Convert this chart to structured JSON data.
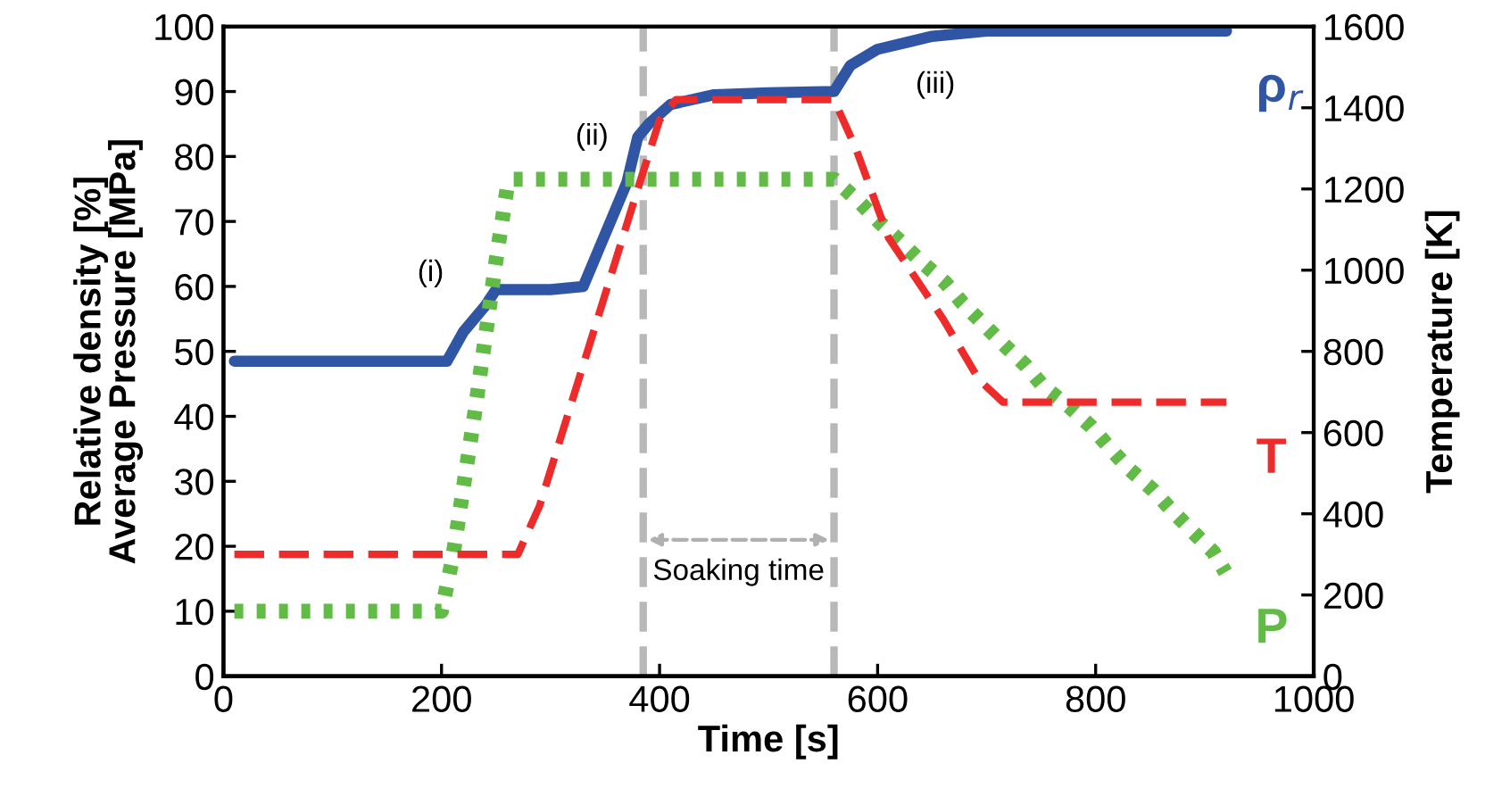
{
  "chart_data": {
    "type": "line",
    "xlabel": "Time [s]",
    "ylabel": "Relative density [%]\nAverage Pressure [MPa]",
    "y2label": "Temperature [K]",
    "xlim": [
      0,
      1000
    ],
    "xticks": [
      0,
      200,
      400,
      600,
      800,
      1000
    ],
    "ylim": [
      0,
      100
    ],
    "yticks": [
      0,
      10,
      20,
      30,
      40,
      50,
      60,
      70,
      80,
      90,
      100
    ],
    "y2lim": [
      0,
      1600
    ],
    "y2ticks": [
      0,
      200,
      400,
      600,
      800,
      1000,
      1200,
      1400,
      1600
    ],
    "grid": false,
    "legend": false,
    "series": [
      {
        "name": "ρ$_{r}$",
        "color": "#2f55a4",
        "line_style": "solid",
        "x": [
          10,
          205,
          220,
          240,
          250,
          300,
          330,
          350,
          370,
          380,
          390,
          410,
          450,
          500,
          560,
          575,
          600,
          650,
          700,
          920
        ],
        "values": [
          48.5,
          48.5,
          53,
          57,
          59.5,
          59.5,
          60,
          68,
          76,
          83,
          85,
          88,
          89.5,
          89.8,
          90,
          94,
          96.5,
          98.5,
          99.3,
          99.3
        ]
      },
      {
        "name": "T",
        "color": "#ee2b2b",
        "line_style": "dashed",
        "axis": "y2",
        "x": [
          10,
          270,
          290,
          380,
          400,
          415,
          560,
          580,
          610,
          660,
          693,
          715,
          920
        ],
        "values": [
          300,
          300,
          420,
          1200,
          1370,
          1420,
          1420,
          1300,
          1080,
          880,
          730,
          675,
          675
        ]
      },
      {
        "name": "P",
        "color": "#63bb47",
        "line_style": "dotted",
        "x": [
          10,
          200,
          210,
          230,
          250,
          260,
          265,
          560,
          582,
          601,
          621,
          640,
          662,
          678,
          697,
          716,
          736,
          752,
          777,
          796,
          812,
          830,
          853,
          870,
          888,
          908,
          919
        ],
        "values": [
          10,
          10,
          18,
          40,
          64,
          75,
          76.5,
          76.5,
          73.2,
          70,
          66.9,
          63.8,
          60.6,
          57.4,
          54.2,
          51,
          47.8,
          44.6,
          41.3,
          38.4,
          35.3,
          32,
          28.6,
          25.5,
          22.4,
          19.1,
          16
        ]
      }
    ],
    "ref_lines": [
      {
        "axis": "x",
        "value": 385,
        "color": "#a6a6a6",
        "line_style": "dashed"
      },
      {
        "axis": "x",
        "value": 560,
        "color": "#a6a6a6",
        "line_style": "dashed"
      }
    ],
    "annotations": [
      "Soaking time",
      "(i)",
      "(ii)",
      "(iii)"
    ]
  }
}
